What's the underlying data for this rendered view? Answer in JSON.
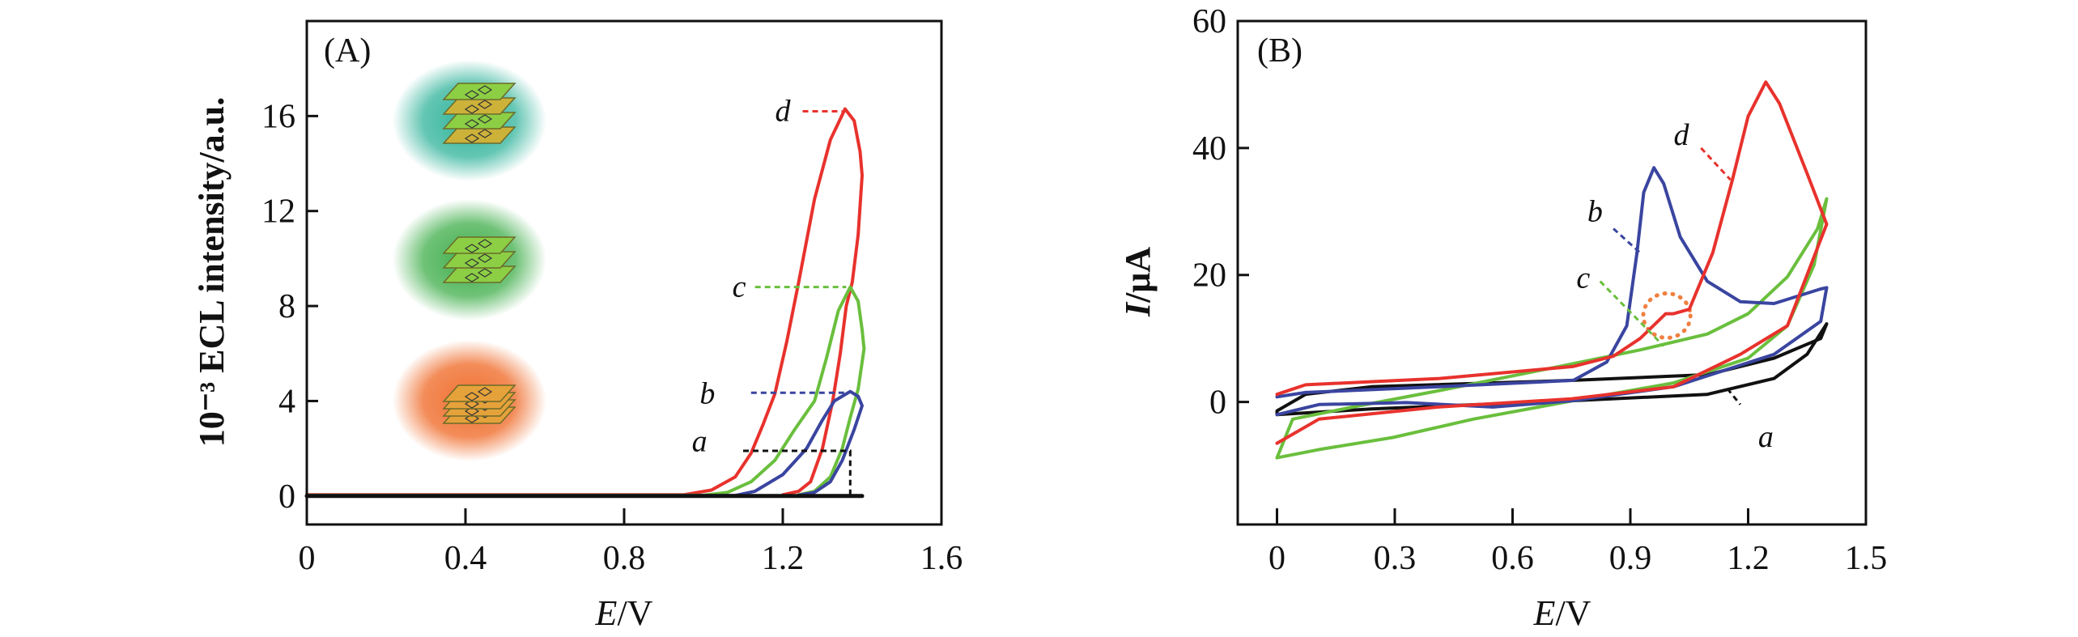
{
  "chart_data": [
    {
      "id": "A",
      "type": "line",
      "panel_label": "(A)",
      "xlabel_italic": "E",
      "xlabel_rest": "/V",
      "ylabel": "10⁻³ ECL intensity/a.u.",
      "xlim": [
        0,
        1.6
      ],
      "ylim": [
        -1.2,
        20
      ],
      "xticks": [
        0,
        0.4,
        0.8,
        1.2,
        1.6
      ],
      "xtick_labels": [
        "0",
        "0.4",
        "0.8",
        "1.2",
        "1.6"
      ],
      "yticks": [
        0,
        4,
        8,
        12,
        16
      ],
      "ytick_labels": [
        "0",
        "4",
        "8",
        "12",
        "16"
      ],
      "series": [
        {
          "name": "a",
          "color": "#111111",
          "points": [
            [
              0,
              0
            ],
            [
              1.4,
              0
            ]
          ],
          "label_at": [
            0.99,
            2.3
          ],
          "leader": [
            [
              1.1,
              1.9
            ],
            [
              1.37,
              1.9
            ],
            [
              1.37,
              0
            ]
          ],
          "leader_color": "#111111"
        },
        {
          "name": "b",
          "color": "#3a45a0",
          "points": [
            [
              0,
              0.02
            ],
            [
              1.08,
              0.02
            ],
            [
              1.13,
              0.2
            ],
            [
              1.2,
              0.9
            ],
            [
              1.26,
              2
            ],
            [
              1.3,
              3.2
            ],
            [
              1.33,
              4
            ],
            [
              1.37,
              4.4
            ],
            [
              1.39,
              4.2
            ],
            [
              1.4,
              3.8
            ],
            [
              1.38,
              2.8
            ],
            [
              1.35,
              1.5
            ],
            [
              1.32,
              0.6
            ],
            [
              1.28,
              0.15
            ],
            [
              1.24,
              0.03
            ]
          ],
          "label_at": [
            1.01,
            4.3
          ],
          "leader": [
            [
              1.12,
              4.35
            ],
            [
              1.36,
              4.35
            ]
          ]
        },
        {
          "name": "c",
          "color": "#6abf3d",
          "points": [
            [
              0,
              0.03
            ],
            [
              1.0,
              0.03
            ],
            [
              1.06,
              0.15
            ],
            [
              1.12,
              0.6
            ],
            [
              1.18,
              1.5
            ],
            [
              1.23,
              2.8
            ],
            [
              1.28,
              4
            ],
            [
              1.31,
              5.8
            ],
            [
              1.34,
              7.8
            ],
            [
              1.37,
              8.8
            ],
            [
              1.39,
              8.2
            ],
            [
              1.4,
              7
            ],
            [
              1.405,
              6.2
            ],
            [
              1.39,
              4.5
            ],
            [
              1.37,
              3.3
            ],
            [
              1.35,
              2
            ],
            [
              1.32,
              0.8
            ],
            [
              1.28,
              0.2
            ],
            [
              1.24,
              0.05
            ]
          ],
          "label_at": [
            1.09,
            8.8
          ],
          "leader": [
            [
              1.13,
              8.8
            ],
            [
              1.36,
              8.8
            ]
          ]
        },
        {
          "name": "d",
          "color": "#e8322d",
          "points": [
            [
              0,
              0.05
            ],
            [
              0.95,
              0.05
            ],
            [
              1.02,
              0.25
            ],
            [
              1.08,
              0.8
            ],
            [
              1.12,
              1.8
            ],
            [
              1.15,
              3
            ],
            [
              1.18,
              4.3
            ],
            [
              1.21,
              6.5
            ],
            [
              1.24,
              9
            ],
            [
              1.28,
              12.5
            ],
            [
              1.32,
              15
            ],
            [
              1.357,
              16.3
            ],
            [
              1.38,
              15.8
            ],
            [
              1.395,
              14.5
            ],
            [
              1.4,
              13.5
            ],
            [
              1.39,
              11
            ],
            [
              1.375,
              9
            ],
            [
              1.36,
              8
            ],
            [
              1.345,
              6
            ],
            [
              1.326,
              4
            ],
            [
              1.3,
              2
            ],
            [
              1.27,
              0.6
            ],
            [
              1.24,
              0.2
            ],
            [
              1.2,
              0.05
            ]
          ],
          "label_at": [
            1.2,
            16.2
          ],
          "leader": [
            [
              1.25,
              16.2
            ],
            [
              1.35,
              16.2
            ]
          ]
        }
      ],
      "insets": [
        {
          "glow": "#2fb39a",
          "layers": "alternating"
        },
        {
          "glow": "#3fae4a",
          "layers": "green"
        },
        {
          "glow": "#f07030",
          "layers": "orange"
        }
      ]
    },
    {
      "id": "B",
      "type": "line",
      "panel_label": "(B)",
      "xlabel_italic": "E",
      "xlabel_rest": "/V",
      "ylabel_italic": "I",
      "ylabel_rest": "/μA",
      "xlim": [
        -0.1,
        1.5
      ],
      "ylim": [
        -19.3,
        60
      ],
      "xticks": [
        0,
        0.3,
        0.6,
        0.9,
        1.2,
        1.5
      ],
      "xtick_labels": [
        "0",
        "0.3",
        "0.6",
        "0.9",
        "1.2",
        "1.5"
      ],
      "yticks": [
        0,
        20,
        40,
        60
      ],
      "ytick_labels": [
        "0",
        "20",
        "40",
        "60"
      ],
      "series": [
        {
          "name": "a",
          "color": "#111111",
          "points": [
            [
              0,
              -2
            ],
            [
              0.24,
              -1.1
            ],
            [
              0.755,
              0.2
            ],
            [
              1.096,
              1.2
            ],
            [
              1.266,
              3.7
            ],
            [
              1.35,
              7.5
            ],
            [
              1.4,
              12.3
            ],
            [
              1.385,
              10
            ],
            [
              1.266,
              6.9
            ],
            [
              1.096,
              4.3
            ],
            [
              0.755,
              3.4
            ],
            [
              0.24,
              2.4
            ],
            [
              0.073,
              1.2
            ],
            [
              0,
              -1.4
            ],
            [
              0,
              -2
            ]
          ],
          "label_at": [
            1.245,
            -5.5
          ],
          "leader": [
            [
              1.147,
              2.1
            ],
            [
              1.18,
              -0.4
            ]
          ]
        },
        {
          "name": "b",
          "color": "#3a45a0",
          "points": [
            [
              0,
              -2
            ],
            [
              0.107,
              -0.4
            ],
            [
              0.33,
              -0.1
            ],
            [
              0.55,
              -0.8
            ],
            [
              0.755,
              0.2
            ],
            [
              1.01,
              2.4
            ],
            [
              1.266,
              7.5
            ],
            [
              1.385,
              12.7
            ],
            [
              1.4,
              18
            ],
            [
              1.385,
              17.8
            ],
            [
              1.266,
              15.5
            ],
            [
              1.18,
              15.8
            ],
            [
              1.096,
              19
            ],
            [
              1.027,
              26
            ],
            [
              0.985,
              34.4
            ],
            [
              0.96,
              36.9
            ],
            [
              0.934,
              33
            ],
            [
              0.917,
              23.5
            ],
            [
              0.891,
              12
            ],
            [
              0.84,
              6.3
            ],
            [
              0.755,
              3.4
            ],
            [
              0.414,
              2.4
            ],
            [
              0.073,
              1.5
            ],
            [
              0,
              0.8
            ]
          ],
          "label_at": [
            0.81,
            30
          ],
          "leader": [
            [
              0.857,
              27.3
            ],
            [
              0.925,
              23.5
            ]
          ]
        },
        {
          "name": "c",
          "color": "#6abf3d",
          "points": [
            [
              0,
              -8.8
            ],
            [
              0.107,
              -7.5
            ],
            [
              0.295,
              -5.6
            ],
            [
              0.5,
              -2.7
            ],
            [
              0.755,
              0.2
            ],
            [
              1.01,
              3
            ],
            [
              1.2,
              6.9
            ],
            [
              1.3,
              12
            ],
            [
              1.368,
              21.6
            ],
            [
              1.4,
              32
            ],
            [
              1.377,
              27.3
            ],
            [
              1.3,
              19.7
            ],
            [
              1.2,
              13.9
            ],
            [
              1.096,
              10.7
            ],
            [
              0.925,
              8.2
            ],
            [
              0.72,
              5.6
            ],
            [
              0.414,
              1.8
            ],
            [
              0.193,
              -0.8
            ],
            [
              0.04,
              -2.7
            ],
            [
              0,
              -8.8
            ]
          ],
          "label_at": [
            0.78,
            19.5
          ],
          "leader": [
            [
              0.823,
              19
            ],
            [
              0.985,
              8.8
            ]
          ]
        },
        {
          "name": "d",
          "color": "#e8322d",
          "points": [
            [
              0,
              -6.5
            ],
            [
              0.107,
              -2.7
            ],
            [
              0.41,
              -0.8
            ],
            [
              0.75,
              0.5
            ],
            [
              1.01,
              2.4
            ],
            [
              1.18,
              7.5
            ],
            [
              1.3,
              12
            ],
            [
              1.4,
              28
            ],
            [
              1.35,
              36
            ],
            [
              1.28,
              47
            ],
            [
              1.245,
              50.4
            ],
            [
              1.2,
              45
            ],
            [
              1.16,
              35
            ],
            [
              1.11,
              23.5
            ],
            [
              1.05,
              14.6
            ],
            [
              1.01,
              13.9
            ],
            [
              0.99,
              13.9
            ],
            [
              0.925,
              10
            ],
            [
              0.857,
              7.2
            ],
            [
              0.755,
              5.6
            ],
            [
              0.414,
              3.7
            ],
            [
              0.073,
              2.7
            ],
            [
              0,
              1.2
            ]
          ],
          "label_at": [
            1.03,
            42
          ],
          "leader": [
            [
              1.08,
              40
            ],
            [
              1.155,
              35
            ]
          ]
        }
      ],
      "annotation_circle": {
        "center": [
          0.993,
          13.6
        ],
        "radius_v": 0.06,
        "radius_ua": 3.5,
        "color": "#f08040"
      }
    }
  ]
}
